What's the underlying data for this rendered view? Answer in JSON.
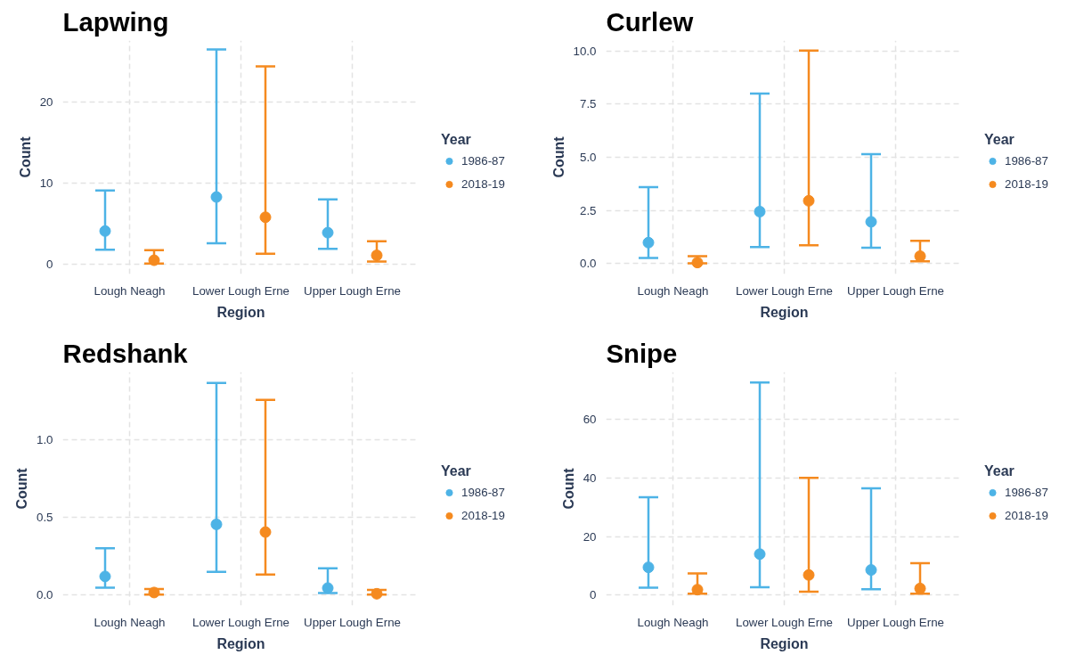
{
  "chart_data": [
    {
      "type": "scatter",
      "title": "Lapwing",
      "xlabel": "Region",
      "ylabel": "Count",
      "legend_title": "Year",
      "categories": [
        "Lough Neagh",
        "Lower Lough Erne",
        "Upper Lough Erne"
      ],
      "ylim": [
        -1.2,
        27.6
      ],
      "yticks": [
        0,
        10,
        20
      ],
      "grid": true,
      "legend": "right",
      "marker": "circle",
      "series": [
        {
          "name": "1986-87",
          "color": "#4db3e6",
          "values": [
            4.1,
            8.3,
            3.9
          ],
          "errors": [
            [
              1.8,
              9.1
            ],
            [
              2.6,
              26.5
            ],
            [
              1.9,
              8.0
            ]
          ]
        },
        {
          "name": "2018-19",
          "color": "#f58a1f",
          "values": [
            0.5,
            5.8,
            1.1
          ],
          "errors": [
            [
              0.1,
              1.75
            ],
            [
              1.3,
              24.4
            ],
            [
              0.35,
              2.85
            ]
          ]
        }
      ]
    },
    {
      "type": "scatter",
      "title": "Curlew",
      "xlabel": "Region",
      "ylabel": "Count",
      "legend_title": "Year",
      "categories": [
        "Lough Neagh",
        "Lower Lough Erne",
        "Upper Lough Erne"
      ],
      "ylim": [
        -0.5,
        10.5
      ],
      "yticks": [
        {
          "value": 0,
          "label": "0.0"
        },
        2.5,
        {
          "value": 5,
          "label": "5.0"
        },
        7.5,
        {
          "value": 10,
          "label": "10.0"
        }
      ],
      "grid": true,
      "legend": "right",
      "marker": "circle",
      "series": [
        {
          "name": "1986-87",
          "color": "#4db3e6",
          "values": [
            0.98,
            2.44,
            1.96
          ],
          "errors": [
            [
              0.26,
              3.59
            ],
            [
              0.77,
              8.0
            ],
            [
              0.74,
              5.15
            ]
          ]
        },
        {
          "name": "2018-19",
          "color": "#f58a1f",
          "values": [
            0.04,
            2.95,
            0.34
          ],
          "errors": [
            [
              0.0,
              0.34
            ],
            [
              0.85,
              10.03
            ],
            [
              0.1,
              1.06
            ]
          ]
        }
      ]
    },
    {
      "type": "scatter",
      "title": "Redshank",
      "xlabel": "Region",
      "ylabel": "Count",
      "legend_title": "Year",
      "categories": [
        "Lough Neagh",
        "Lower Lough Erne",
        "Upper Lough Erne"
      ],
      "ylim": [
        -0.07,
        1.44
      ],
      "yticks": [
        {
          "value": 0,
          "label": "0.0"
        },
        0.5,
        {
          "value": 1,
          "label": "1.0"
        }
      ],
      "grid": true,
      "legend": "right",
      "marker": "circle",
      "series": [
        {
          "name": "1986-87",
          "color": "#4db3e6",
          "values": [
            0.118,
            0.455,
            0.043
          ],
          "errors": [
            [
              0.045,
              0.3
            ],
            [
              0.147,
              1.37
            ],
            [
              0.01,
              0.17
            ]
          ]
        },
        {
          "name": "2018-19",
          "color": "#f58a1f",
          "values": [
            0.014,
            0.405,
            0.006
          ],
          "errors": [
            [
              0.0,
              0.037
            ],
            [
              0.13,
              1.26
            ],
            [
              0.0,
              0.031
            ]
          ]
        }
      ]
    },
    {
      "type": "scatter",
      "title": "Snipe",
      "xlabel": "Region",
      "ylabel": "Count",
      "legend_title": "Year",
      "categories": [
        "Lough Neagh",
        "Lower Lough Erne",
        "Upper Lough Erne"
      ],
      "ylim": [
        -3.5,
        76
      ],
      "yticks": [
        0,
        20,
        40,
        60
      ],
      "grid": true,
      "legend": "right",
      "marker": "circle",
      "series": [
        {
          "name": "1986-87",
          "color": "#4db3e6",
          "values": [
            9.5,
            14.0,
            8.6
          ],
          "errors": [
            [
              2.6,
              33.4
            ],
            [
              2.7,
              72.4
            ],
            [
              2.0,
              36.4
            ]
          ]
        },
        {
          "name": "2018-19",
          "color": "#f58a1f",
          "values": [
            1.9,
            6.9,
            2.3
          ],
          "errors": [
            [
              0.5,
              7.4
            ],
            [
              1.2,
              40.0
            ],
            [
              0.5,
              10.9
            ]
          ]
        }
      ]
    }
  ]
}
